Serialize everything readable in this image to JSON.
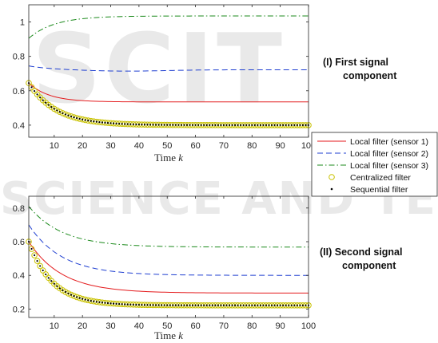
{
  "colors": {
    "red": "#e41a1c",
    "blue": "#1f3fd1",
    "green": "#1b8a1b",
    "circle": "#c9c200",
    "dot": "#000000",
    "axis": "#262626",
    "watermark": "#e9e9e9"
  },
  "watermark": {
    "top_word": "SCIT",
    "bottom_words": "SCIENCE AND TECHN"
  },
  "panel_titles": {
    "first": [
      "(I)  First signal",
      "component"
    ],
    "second": [
      "(II)  Second signal",
      "component"
    ]
  },
  "legend": {
    "entries": [
      {
        "label": "Local filter (sensor 1)",
        "style": "solid",
        "color": "#e41a1c"
      },
      {
        "label": "Local filter (sensor 2)",
        "style": "dashed",
        "color": "#1f3fd1"
      },
      {
        "label": "Local filter (sensor 3)",
        "style": "dashdot",
        "color": "#1b8a1b"
      },
      {
        "label": "Centralized filter",
        "style": "circle",
        "color": "#c9c200"
      },
      {
        "label": "Sequential filter",
        "style": "dot",
        "color": "#000000"
      }
    ]
  },
  "chart_data": [
    {
      "type": "line",
      "xlabel": "Time k",
      "x_range": [
        1,
        100
      ],
      "ylim": [
        0.33,
        1.1
      ],
      "xticks": [
        10,
        20,
        30,
        40,
        50,
        60,
        70,
        80,
        90,
        100
      ],
      "yticks": [
        0.4,
        0.6,
        0.8,
        1
      ],
      "series": [
        {
          "name": "Local filter (sensor 1)",
          "kind": "red",
          "y0": 0.645,
          "yinf": 0.535,
          "rate": 0.14
        },
        {
          "name": "Local filter (sensor 2)",
          "kind": "blue",
          "y0": 0.745,
          "yinf": 0.722,
          "rate": 0.12,
          "dip": {
            "depth": 0.008,
            "center": 35,
            "width": 20
          }
        },
        {
          "name": "Local filter (sensor 3)",
          "kind": "green",
          "y0": 0.905,
          "yinf": 1.035,
          "rate": 0.11
        },
        {
          "name": "Centralized filter",
          "kind": "circle",
          "y0": 0.645,
          "yinf": 0.4,
          "rate": 0.105
        },
        {
          "name": "Sequential filter",
          "kind": "dot",
          "y0": 0.645,
          "yinf": 0.4,
          "rate": 0.105
        }
      ]
    },
    {
      "type": "line",
      "xlabel": "Time k",
      "x_range": [
        1,
        100
      ],
      "ylim": [
        0.15,
        0.87
      ],
      "xticks": [
        10,
        20,
        30,
        40,
        50,
        60,
        70,
        80,
        90,
        100
      ],
      "yticks": [
        0.2,
        0.4,
        0.6,
        0.8
      ],
      "series": [
        {
          "name": "Local filter (sensor 1)",
          "kind": "red",
          "y0": 0.6,
          "yinf": 0.295,
          "rate": 0.085
        },
        {
          "name": "Local filter (sensor 2)",
          "kind": "blue",
          "y0": 0.7,
          "yinf": 0.4,
          "rate": 0.085
        },
        {
          "name": "Local filter (sensor 3)",
          "kind": "green",
          "y0": 0.81,
          "yinf": 0.568,
          "rate": 0.085
        },
        {
          "name": "Centralized filter",
          "kind": "circle",
          "y0": 0.6,
          "yinf": 0.222,
          "rate": 0.12
        },
        {
          "name": "Sequential filter",
          "kind": "dot",
          "y0": 0.6,
          "yinf": 0.222,
          "rate": 0.12
        }
      ]
    }
  ]
}
